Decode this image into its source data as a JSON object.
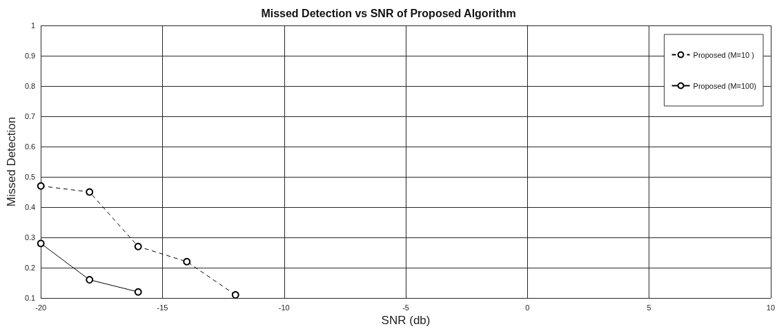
{
  "chart_data": {
    "type": "line",
    "title": "Missed Detection vs SNR of Proposed Algorithm",
    "xlabel": "SNR (db)",
    "ylabel": "Missed Detection",
    "series": [
      {
        "name": "Proposed (M=10 )",
        "color": "#000000",
        "line_style": "dashed",
        "x": [
          -20,
          -18,
          -16,
          -14,
          -12
        ],
        "values": [
          0.47,
          0.45,
          0.27,
          0.22,
          0.11
        ]
      },
      {
        "name": "Proposed (M=100)",
        "color": "#000000",
        "line_style": "solid",
        "x": [
          -20,
          -18,
          -16
        ],
        "values": [
          0.28,
          0.16,
          0.12
        ]
      }
    ],
    "xlim": [
      -20,
      10
    ],
    "xticks": [
      -20,
      -15,
      -10,
      -5,
      0,
      5,
      10
    ],
    "ylim": [
      0.1,
      1
    ],
    "yticks": [
      0.1,
      0.2,
      0.3,
      0.4,
      0.5,
      0.6,
      0.7,
      0.8,
      0.9,
      1
    ],
    "grid": true,
    "legend": "top right",
    "marker": "circle"
  }
}
